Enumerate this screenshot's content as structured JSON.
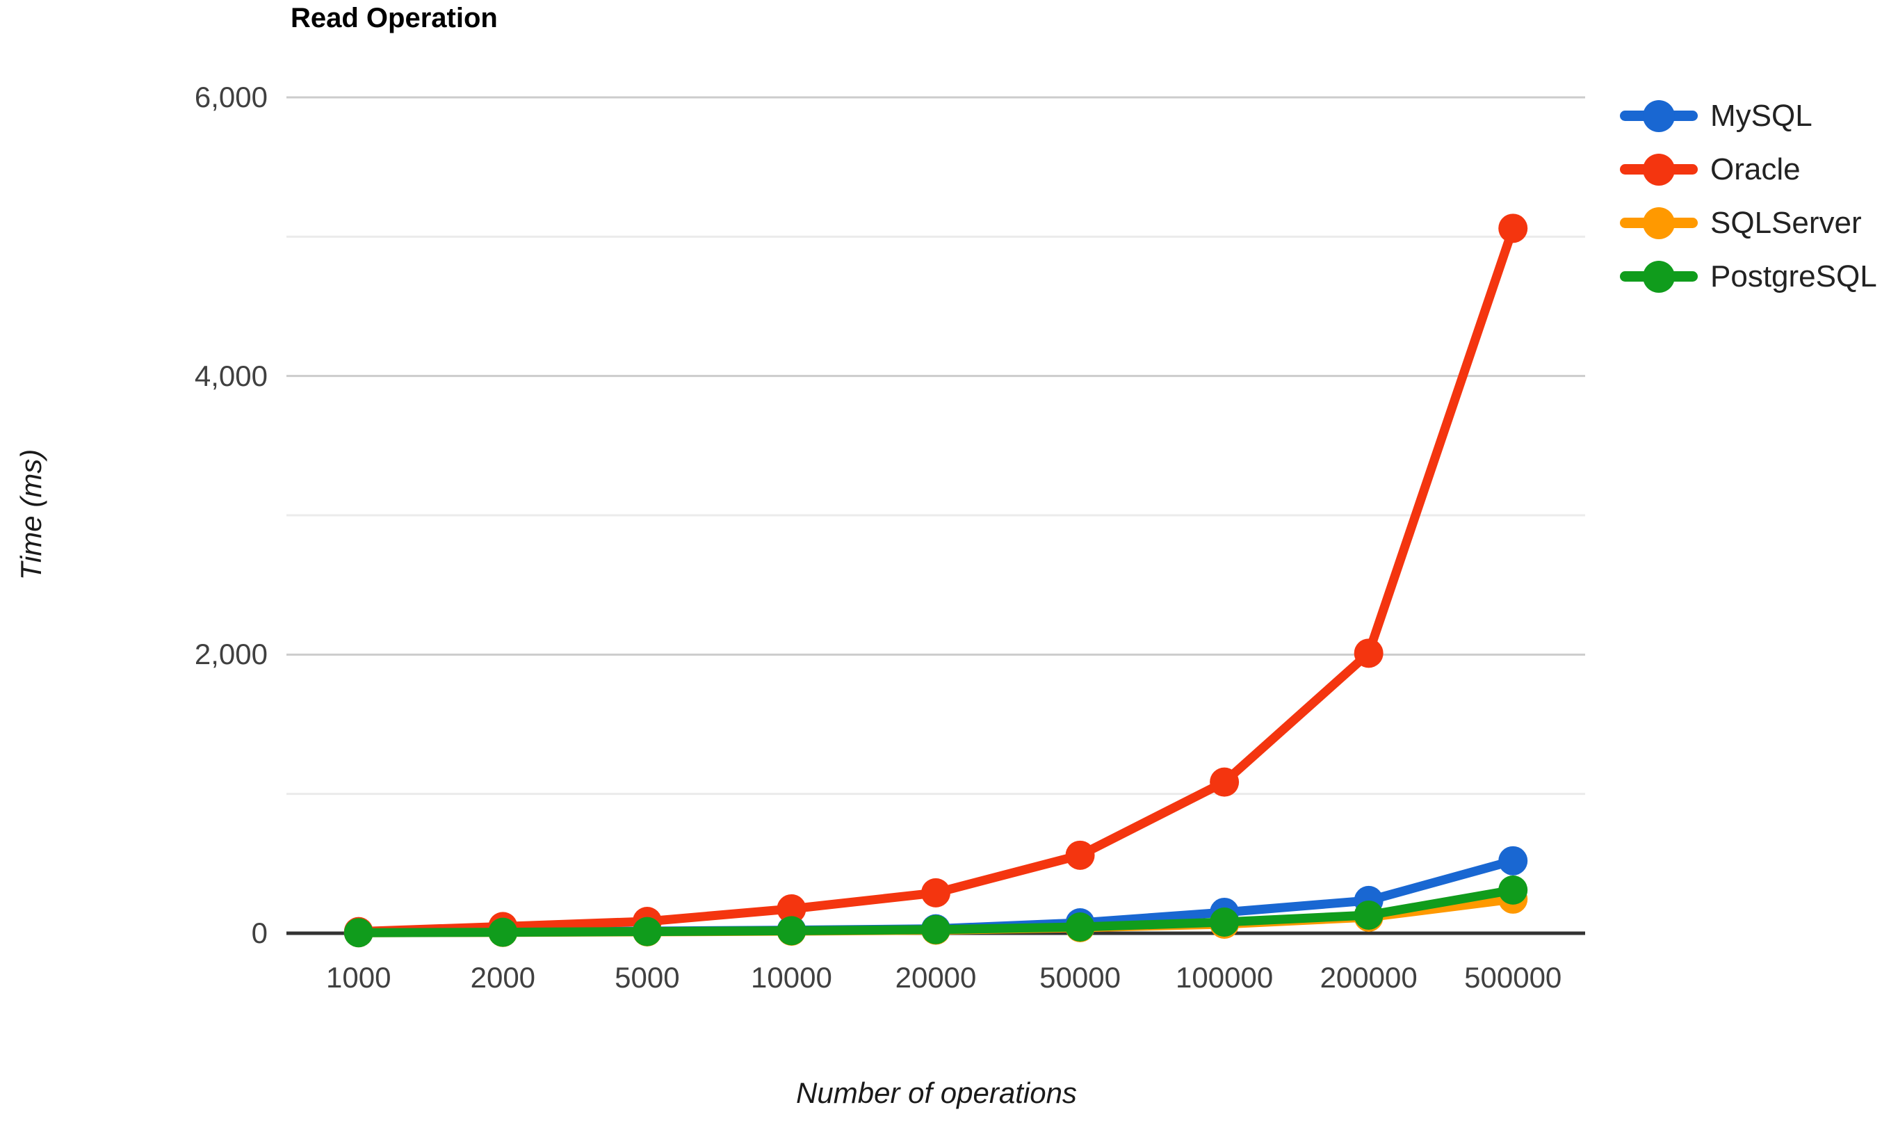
{
  "chart_data": {
    "type": "line",
    "title": "Read Operation",
    "xlabel": "Number of operations",
    "ylabel": "Time (ms)",
    "categories": [
      "1000",
      "2000",
      "5000",
      "10000",
      "20000",
      "50000",
      "100000",
      "200000",
      "500000"
    ],
    "series": [
      {
        "name": "MySQL",
        "color": "#1967D2",
        "values": [
          5,
          8,
          15,
          22,
          32,
          75,
          150,
          235,
          520
        ]
      },
      {
        "name": "Oracle",
        "color": "#F4350F",
        "values": [
          12,
          48,
          85,
          175,
          290,
          560,
          1085,
          2010,
          5060
        ]
      },
      {
        "name": "SQLServer",
        "color": "#FF9900",
        "values": [
          4,
          6,
          10,
          15,
          22,
          40,
          65,
          115,
          245
        ]
      },
      {
        "name": "PostgreSQL",
        "color": "#109C1C",
        "values": [
          4,
          7,
          12,
          18,
          26,
          45,
          80,
          130,
          310
        ]
      }
    ],
    "y_axis": {
      "min": 0,
      "max": 6000,
      "tick_step": 2000,
      "minor_step": 1000,
      "tick_labels": [
        "0",
        "2,000",
        "4,000",
        "6,000"
      ]
    },
    "legend_position": "right",
    "grid": true
  },
  "styles": {
    "background": "#ffffff",
    "major_gridline": "#cccccc",
    "minor_gridline": "#ebebeb",
    "axis_line": "#333333",
    "tick_label_color": "#404040"
  }
}
